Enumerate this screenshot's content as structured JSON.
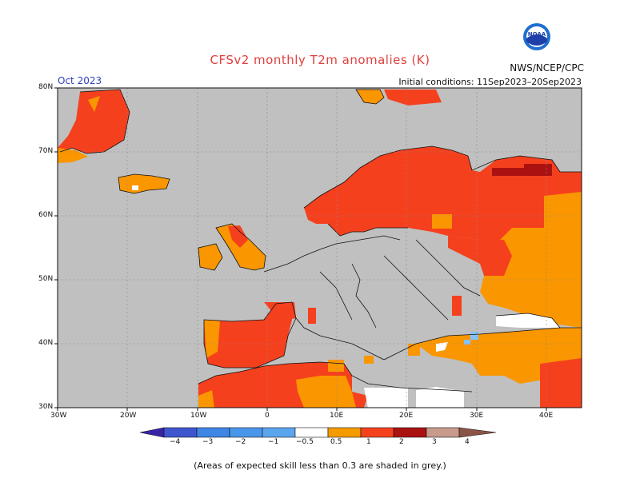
{
  "header": {
    "title": "CFSv2 monthly T2m anomalies (K)",
    "agency": "NWS/NCEP/CPC",
    "month": "Oct 2023",
    "initial_conditions": "Initial conditions: 11Sep2023–20Sep2023"
  },
  "logo": {
    "text": "NOAA",
    "icon": "noaa-logo"
  },
  "axes": {
    "lat_labels": [
      "80N",
      "70N",
      "60N",
      "50N",
      "40N",
      "30N"
    ],
    "lon_labels": [
      "30W",
      "20W",
      "10W",
      "0",
      "10E",
      "20E",
      "30E",
      "40E"
    ]
  },
  "colorbar": {
    "labels": [
      "−4",
      "−3",
      "−2",
      "−1",
      "−0.5",
      "0.5",
      "1",
      "2",
      "3",
      "4"
    ],
    "colors": [
      "#3b23a8",
      "#3e57cf",
      "#3f86e4",
      "#5ba5ee",
      "#86c2f7",
      "#ffffff",
      "#f59b00",
      "#f5401e",
      "#aa1212",
      "#c79a8b",
      "#8b5347"
    ]
  },
  "colors": {
    "ocean_land_grey": "#c0c0c0",
    "orange": "#fa9600",
    "red": "#f5401e",
    "dark_red": "#aa1212",
    "light_blue": "#86c2f7"
  },
  "footer": "(Areas of expected skill less than 0.3 are shaded in grey.)"
}
